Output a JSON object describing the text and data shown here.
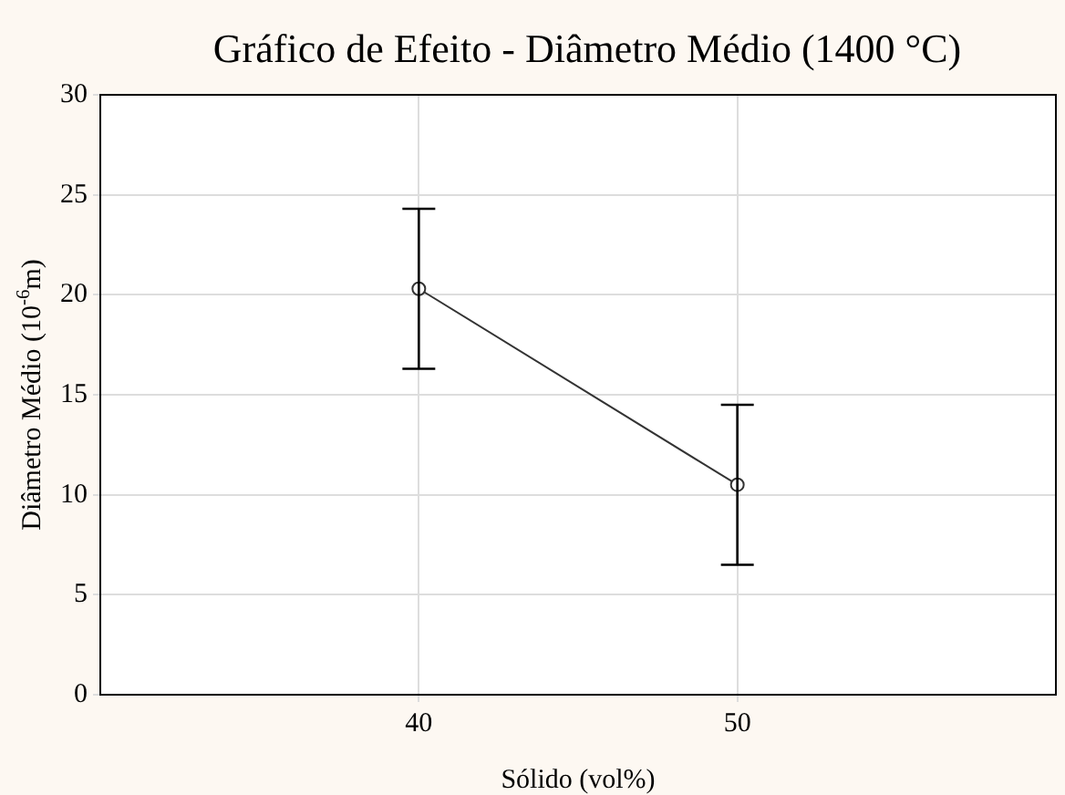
{
  "chart_data": {
    "type": "line",
    "title": "Gráfico de Efeito - Diâmetro Médio (1400 °C)",
    "xlabel": "Sólido (vol%)",
    "ylabel": "Diâmetro Médio (10$^{-6}$m)",
    "x": [
      40,
      50
    ],
    "series": [
      {
        "color": "#333333",
        "values": [
          20.3,
          10.5
        ],
        "errors": [
          4,
          4
        ]
      }
    ],
    "xlim": [
      30,
      60
    ],
    "xticks": [
      40,
      50
    ],
    "ylim": [
      0,
      30
    ],
    "yticks": [
      0,
      5,
      10,
      15,
      20,
      25,
      30
    ],
    "grid": true,
    "legend": false,
    "marker": "circle",
    "line_style": "solid"
  }
}
